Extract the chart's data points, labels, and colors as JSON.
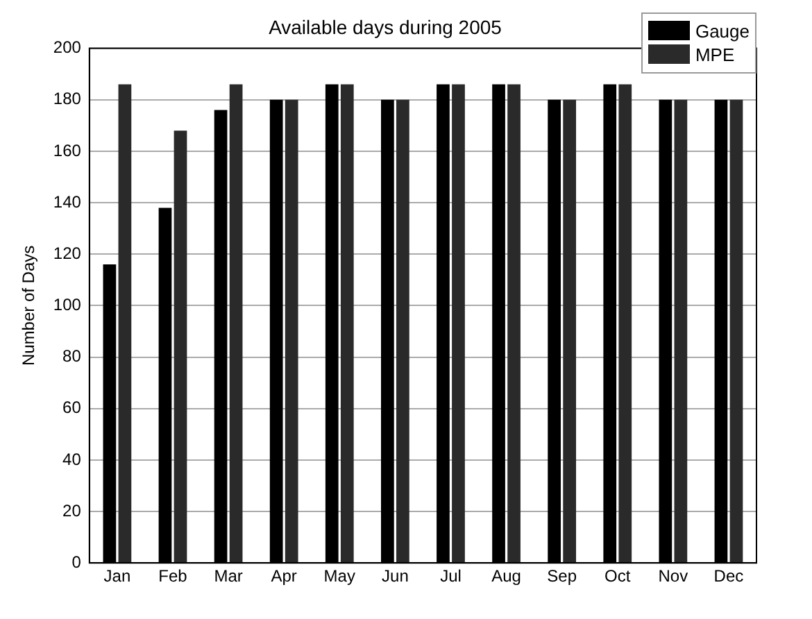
{
  "chart_data": {
    "type": "bar",
    "title": "Available days during 2005",
    "ylabel": "Number of Days",
    "categories": [
      "Jan",
      "Feb",
      "Mar",
      "Apr",
      "May",
      "Jun",
      "Jul",
      "Aug",
      "Sep",
      "Oct",
      "Nov",
      "Dec"
    ],
    "series": [
      {
        "name": "Gauge",
        "color": "#000000",
        "values": [
          116,
          138,
          176,
          180,
          186,
          180,
          186,
          186,
          180,
          186,
          180,
          180
        ]
      },
      {
        "name": "MPE",
        "color": "#2a2a2a",
        "values": [
          186,
          168,
          186,
          180,
          186,
          180,
          186,
          186,
          180,
          186,
          180,
          180
        ]
      }
    ],
    "ylim": [
      0,
      200
    ],
    "yticks": [
      0,
      20,
      40,
      60,
      80,
      100,
      120,
      140,
      160,
      180,
      200
    ],
    "grid": "y",
    "legend": "top right"
  }
}
